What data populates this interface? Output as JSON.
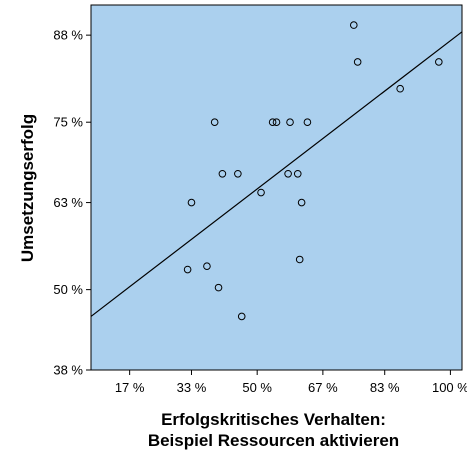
{
  "colors": {
    "plot_background": "#abd0ee",
    "marker_stroke": "#000000",
    "line": "#000000"
  },
  "chart_data": {
    "type": "scatter",
    "xlabel": [
      "Erfolgskritisches Verhalten:",
      "Beispiel Ressourcen aktivieren"
    ],
    "ylabel": "Umsetzungserfolg",
    "xlim": [
      7,
      103
    ],
    "ylim": [
      38,
      92.5
    ],
    "xticks": [
      {
        "value": 17,
        "label": "17 %"
      },
      {
        "value": 33,
        "label": "33 %"
      },
      {
        "value": 50,
        "label": "50 %"
      },
      {
        "value": 67,
        "label": "67 %"
      },
      {
        "value": 83,
        "label": "83 %"
      },
      {
        "value": 100,
        "label": "100 %"
      }
    ],
    "yticks": [
      {
        "value": 38,
        "label": "38 %"
      },
      {
        "value": 50,
        "label": "50 %"
      },
      {
        "value": 63,
        "label": "63 %"
      },
      {
        "value": 75,
        "label": "75 %"
      },
      {
        "value": 88,
        "label": "88 %"
      }
    ],
    "points": [
      {
        "x": 32,
        "y": 53
      },
      {
        "x": 33,
        "y": 63
      },
      {
        "x": 37,
        "y": 53.5
      },
      {
        "x": 39,
        "y": 75
      },
      {
        "x": 40,
        "y": 50.3
      },
      {
        "x": 41,
        "y": 67.3
      },
      {
        "x": 45,
        "y": 67.3
      },
      {
        "x": 46,
        "y": 46
      },
      {
        "x": 51,
        "y": 64.5
      },
      {
        "x": 54,
        "y": 75
      },
      {
        "x": 55,
        "y": 75
      },
      {
        "x": 58,
        "y": 67.3
      },
      {
        "x": 58.5,
        "y": 75
      },
      {
        "x": 60.5,
        "y": 67.3
      },
      {
        "x": 61,
        "y": 54.5
      },
      {
        "x": 61.5,
        "y": 63
      },
      {
        "x": 63,
        "y": 75
      },
      {
        "x": 75,
        "y": 89.5
      },
      {
        "x": 76,
        "y": 84
      },
      {
        "x": 87,
        "y": 80
      },
      {
        "x": 97,
        "y": 84
      }
    ],
    "fit_line": {
      "x": [
        7,
        103
      ],
      "y": [
        46,
        88.5
      ]
    },
    "grid": false,
    "legend": "none"
  }
}
